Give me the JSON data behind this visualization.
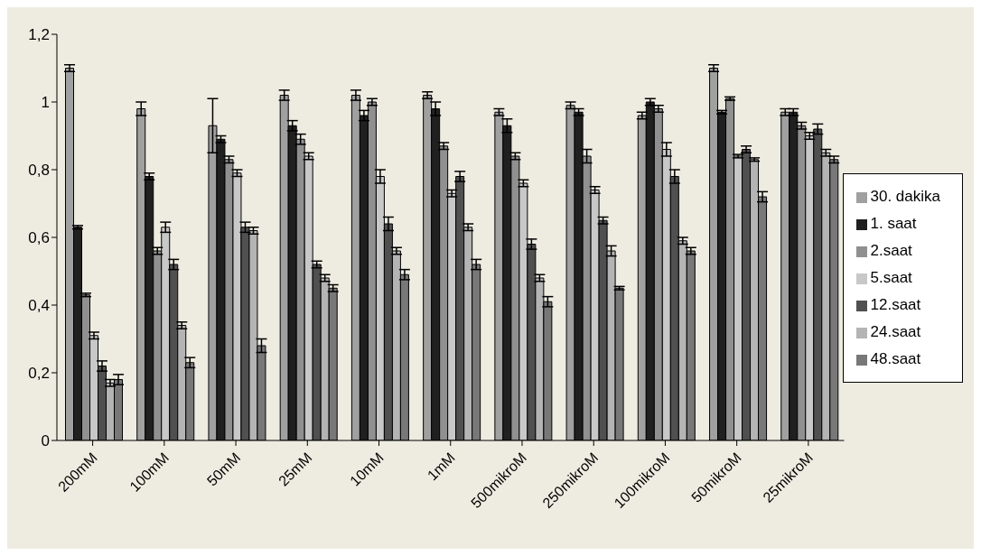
{
  "chart_data": {
    "type": "bar",
    "categories": [
      "200mM",
      "100mM",
      "50mM",
      "25mM",
      "10mM",
      "1mM",
      "500mikroM",
      "250mikroM",
      "100mikroM",
      "50mikroM",
      "25mikroM"
    ],
    "series": [
      {
        "name": "30. dakika",
        "color": "#a0a0a0",
        "values": [
          1.1,
          0.98,
          0.93,
          1.02,
          1.02,
          1.02,
          0.97,
          0.99,
          0.96,
          1.1,
          0.97
        ],
        "errors": [
          0.01,
          0.02,
          0.08,
          0.015,
          0.015,
          0.01,
          0.01,
          0.01,
          0.01,
          0.01,
          0.01
        ]
      },
      {
        "name": "1. saat",
        "color": "#202020",
        "values": [
          0.63,
          0.78,
          0.89,
          0.93,
          0.96,
          0.98,
          0.93,
          0.97,
          1.0,
          0.97,
          0.97
        ],
        "errors": [
          0.005,
          0.01,
          0.01,
          0.015,
          0.015,
          0.02,
          0.02,
          0.01,
          0.01,
          0.005,
          0.01
        ]
      },
      {
        "name": "2.saat",
        "color": "#909090",
        "values": [
          0.43,
          0.56,
          0.83,
          0.89,
          1.0,
          0.87,
          0.84,
          0.84,
          0.98,
          1.01,
          0.93
        ],
        "errors": [
          0.005,
          0.01,
          0.01,
          0.015,
          0.01,
          0.01,
          0.01,
          0.02,
          0.01,
          0.005,
          0.01
        ]
      },
      {
        "name": "5.saat",
        "color": "#c8c8c8",
        "values": [
          0.31,
          0.63,
          0.79,
          0.84,
          0.78,
          0.73,
          0.76,
          0.74,
          0.86,
          0.84,
          0.9
        ],
        "errors": [
          0.01,
          0.015,
          0.01,
          0.01,
          0.02,
          0.01,
          0.01,
          0.01,
          0.02,
          0.005,
          0.01
        ]
      },
      {
        "name": "12.saat",
        "color": "#505050",
        "values": [
          0.22,
          0.52,
          0.63,
          0.52,
          0.64,
          0.78,
          0.58,
          0.65,
          0.78,
          0.86,
          0.92
        ],
        "errors": [
          0.015,
          0.015,
          0.015,
          0.01,
          0.02,
          0.015,
          0.015,
          0.01,
          0.02,
          0.01,
          0.015
        ]
      },
      {
        "name": "24.saat",
        "color": "#b4b4b4",
        "values": [
          0.17,
          0.34,
          0.62,
          0.48,
          0.56,
          0.63,
          0.48,
          0.56,
          0.59,
          0.83,
          0.85
        ],
        "errors": [
          0.01,
          0.01,
          0.01,
          0.01,
          0.01,
          0.01,
          0.01,
          0.015,
          0.01,
          0.005,
          0.01
        ]
      },
      {
        "name": "48.saat",
        "color": "#787878",
        "values": [
          0.18,
          0.23,
          0.28,
          0.45,
          0.49,
          0.52,
          0.41,
          0.45,
          0.56,
          0.72,
          0.83
        ],
        "errors": [
          0.015,
          0.015,
          0.02,
          0.01,
          0.015,
          0.015,
          0.015,
          0.005,
          0.01,
          0.015,
          0.01
        ]
      }
    ],
    "ylim": [
      0,
      1.2
    ],
    "yticks": [
      0,
      {
        "value": 0.2,
        "label": "0,2"
      },
      {
        "value": 0.4,
        "label": "0,4"
      },
      {
        "value": 0.6,
        "label": "0,6"
      },
      {
        "value": 0.8,
        "label": "0,8"
      },
      1,
      {
        "value": 1.2,
        "label": "1,2"
      }
    ],
    "grid": false,
    "legend": "right"
  }
}
